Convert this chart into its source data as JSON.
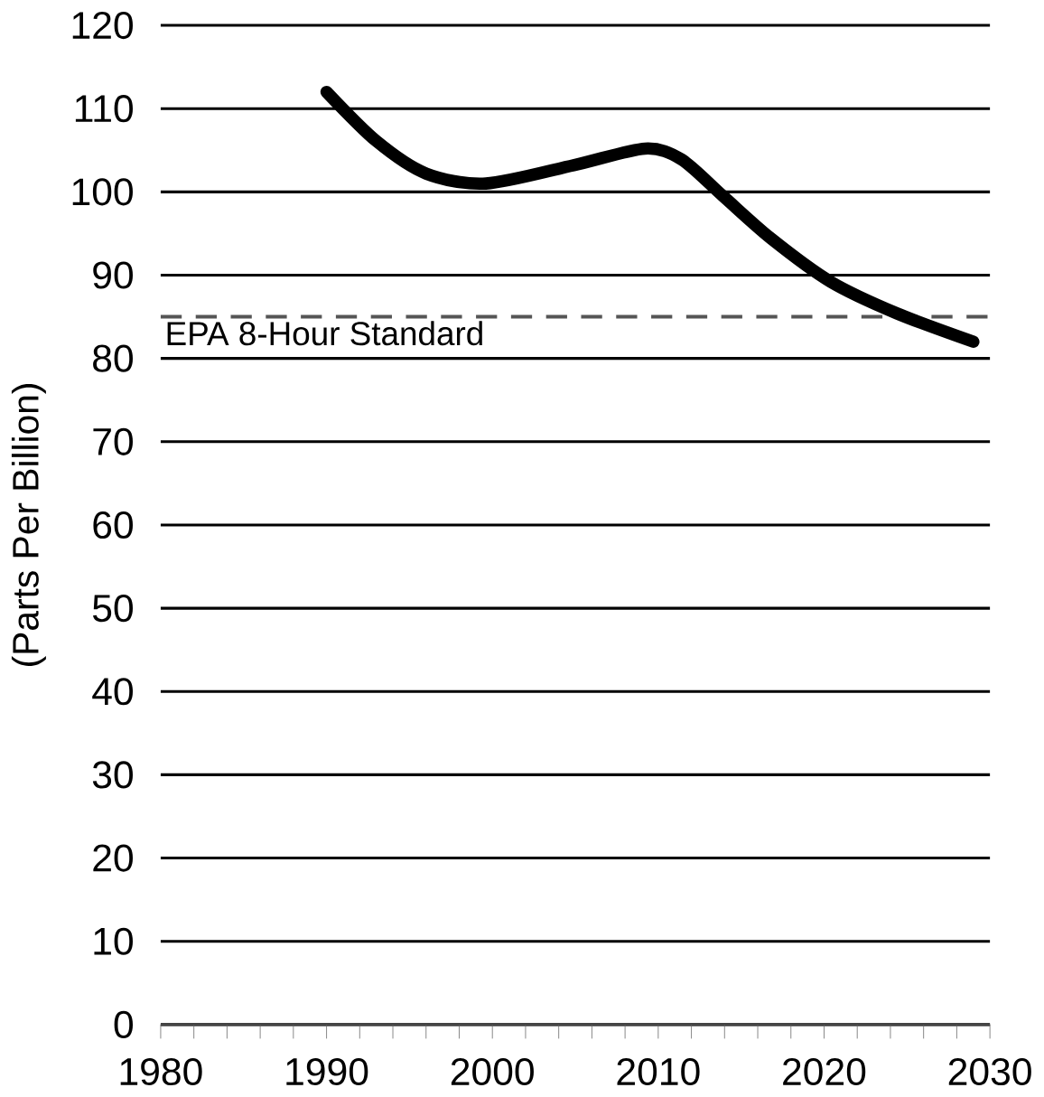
{
  "chart_data": {
    "type": "line",
    "ylabel": "(Parts Per Billion)",
    "x": [
      1990,
      1993,
      1996,
      1999.6,
      2004.9,
      2009.2,
      2011.4,
      2013.9,
      2016.8,
      2020.4,
      2024.4,
      2029
    ],
    "series": [
      {
        "color": "#000000",
        "values": [
          112,
          106.1,
          102.2,
          101,
          103.2,
          105.2,
          103.9,
          99.5,
          94.4,
          89.2,
          85.4,
          82
        ]
      }
    ],
    "xlim": [
      1980,
      2030
    ],
    "xticks": [
      1980,
      1990,
      2000,
      2010,
      2020,
      2030
    ],
    "ylim": [
      0,
      120
    ],
    "yticks": [
      0,
      10,
      20,
      30,
      40,
      50,
      60,
      70,
      80,
      90,
      100,
      110,
      120
    ],
    "grid": "y",
    "marker": "none",
    "line_style": "solid",
    "ref_lines": [
      {
        "axis": "y",
        "value": 85,
        "label": "EPA 8-Hour Standard",
        "color": "#555555",
        "line_style": "dashed"
      }
    ]
  }
}
